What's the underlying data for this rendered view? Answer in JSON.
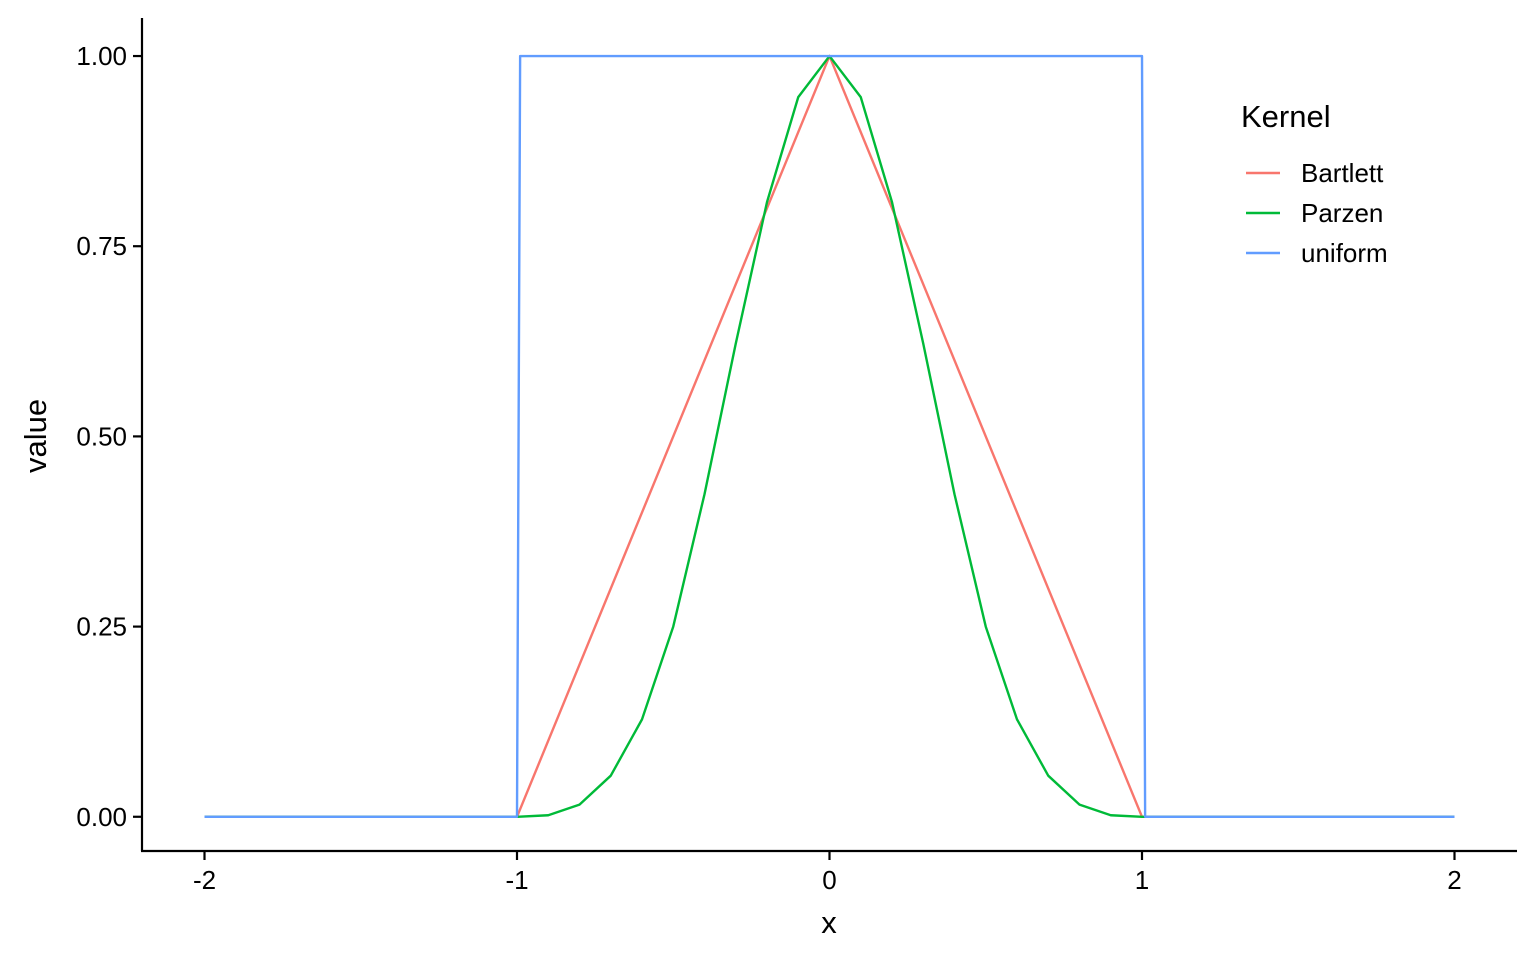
{
  "chart_data": {
    "type": "line",
    "xlabel": "x",
    "ylabel": "value",
    "xlim": [
      -2.2,
      2.2
    ],
    "ylim": [
      -0.045,
      1.05
    ],
    "x_ticks": [
      -2,
      -1,
      0,
      1,
      2
    ],
    "x_tick_labels": [
      "-2",
      "-1",
      "0",
      "1",
      "2"
    ],
    "y_ticks": [
      0,
      0.25,
      0.5,
      0.75,
      1.0
    ],
    "y_tick_labels": [
      "0.00",
      "0.25",
      "0.50",
      "0.75",
      "1.00"
    ],
    "grid": false,
    "legend": {
      "title": "Kernel",
      "position": "top-right",
      "entries": [
        "Bartlett",
        "Parzen",
        "uniform"
      ]
    },
    "series": [
      {
        "name": "Bartlett",
        "color": "#F8766D",
        "x": [
          -2,
          -1,
          0,
          1,
          2
        ],
        "y": [
          0,
          0,
          1,
          0,
          0
        ]
      },
      {
        "name": "Parzen",
        "color": "#00BA38",
        "x": [
          -2,
          -1,
          -0.9,
          -0.8,
          -0.7,
          -0.6,
          -0.5,
          -0.4,
          -0.3,
          -0.2,
          -0.1,
          0,
          0.1,
          0.2,
          0.3,
          0.4,
          0.5,
          0.6,
          0.7,
          0.8,
          0.9,
          1,
          2
        ],
        "y": [
          0,
          0,
          0.002,
          0.016,
          0.054,
          0.128,
          0.25,
          0.424,
          0.622,
          0.808,
          0.946,
          1,
          0.946,
          0.808,
          0.622,
          0.424,
          0.25,
          0.128,
          0.054,
          0.016,
          0.002,
          0,
          0
        ]
      },
      {
        "name": "uniform",
        "color": "#619CFF",
        "x": [
          -2,
          -1.0,
          -0.99,
          1.0,
          1.01,
          2
        ],
        "y": [
          0,
          0,
          1,
          1,
          0,
          0
        ]
      }
    ]
  }
}
